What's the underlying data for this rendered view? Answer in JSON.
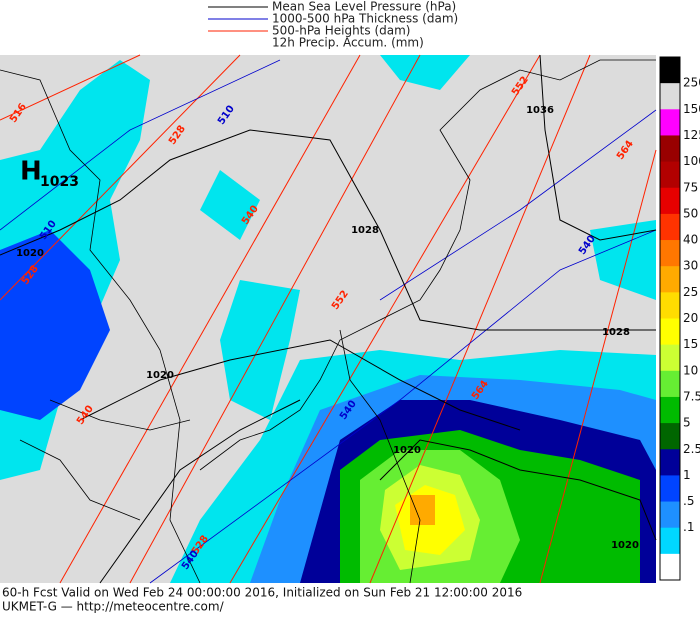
{
  "legend": [
    {
      "label": "Mean Sea Level Pressure (hPa)",
      "color": "#000000"
    },
    {
      "label": "1000-500 hPa Thickness (dam)",
      "color": "#0000cc"
    },
    {
      "label": "500-hPa Heights (dam)",
      "color": "#ff2200"
    },
    {
      "label": "12h Precip. Accum. (mm)",
      "color": null
    }
  ],
  "high": {
    "letter": "H",
    "value": "1023"
  },
  "contour_labels": [
    {
      "text": "516",
      "color": "#ff2200"
    },
    {
      "text": "528",
      "color": "#ff2200"
    },
    {
      "text": "540",
      "color": "#ff2200"
    },
    {
      "text": "552",
      "color": "#ff2200"
    },
    {
      "text": "552",
      "color": "#ff2200"
    },
    {
      "text": "564",
      "color": "#ff2200"
    },
    {
      "text": "528",
      "color": "#ff2200"
    },
    {
      "text": "540",
      "color": "#ff2200"
    },
    {
      "text": "528",
      "color": "#ff2200"
    },
    {
      "text": "564",
      "color": "#ff2200"
    },
    {
      "text": "510",
      "color": "#0000cc"
    },
    {
      "text": "510",
      "color": "#0000cc"
    },
    {
      "text": "540",
      "color": "#0000cc"
    },
    {
      "text": "540",
      "color": "#0000cc"
    },
    {
      "text": "540",
      "color": "#0000cc"
    },
    {
      "text": "1020",
      "color": "#000000"
    },
    {
      "text": "1028",
      "color": "#000000"
    },
    {
      "text": "1036",
      "color": "#000000"
    },
    {
      "text": "1028",
      "color": "#000000"
    },
    {
      "text": "1020",
      "color": "#000000"
    },
    {
      "text": "1020",
      "color": "#000000"
    },
    {
      "text": "1020",
      "color": "#000000"
    }
  ],
  "colorbar": {
    "labels": [
      "250",
      "150",
      "125",
      "100",
      "75",
      "50",
      "40",
      "30",
      "25",
      "20",
      "15",
      "10",
      "7.5",
      "5",
      "2.5",
      "1",
      ".5",
      ".1"
    ],
    "colors": [
      "#000000",
      "#dcdcdc",
      "#ff00ff",
      "#990000",
      "#b20000",
      "#e60000",
      "#ff3300",
      "#ff7700",
      "#ffaa00",
      "#ffdd00",
      "#ffff00",
      "#ccff33",
      "#66ee33",
      "#00bb00",
      "#006600",
      "#000099",
      "#0044ff",
      "#1e90ff",
      "#00d8ff",
      "#ffffff"
    ]
  },
  "footer": {
    "line1": "60-h Fcst Valid on Wed Feb 24 00:00:00 2016, Initialized on Sun Feb 21 12:00:00 2016",
    "line2": "UKMET-G  — http://meteocentre.com/"
  }
}
